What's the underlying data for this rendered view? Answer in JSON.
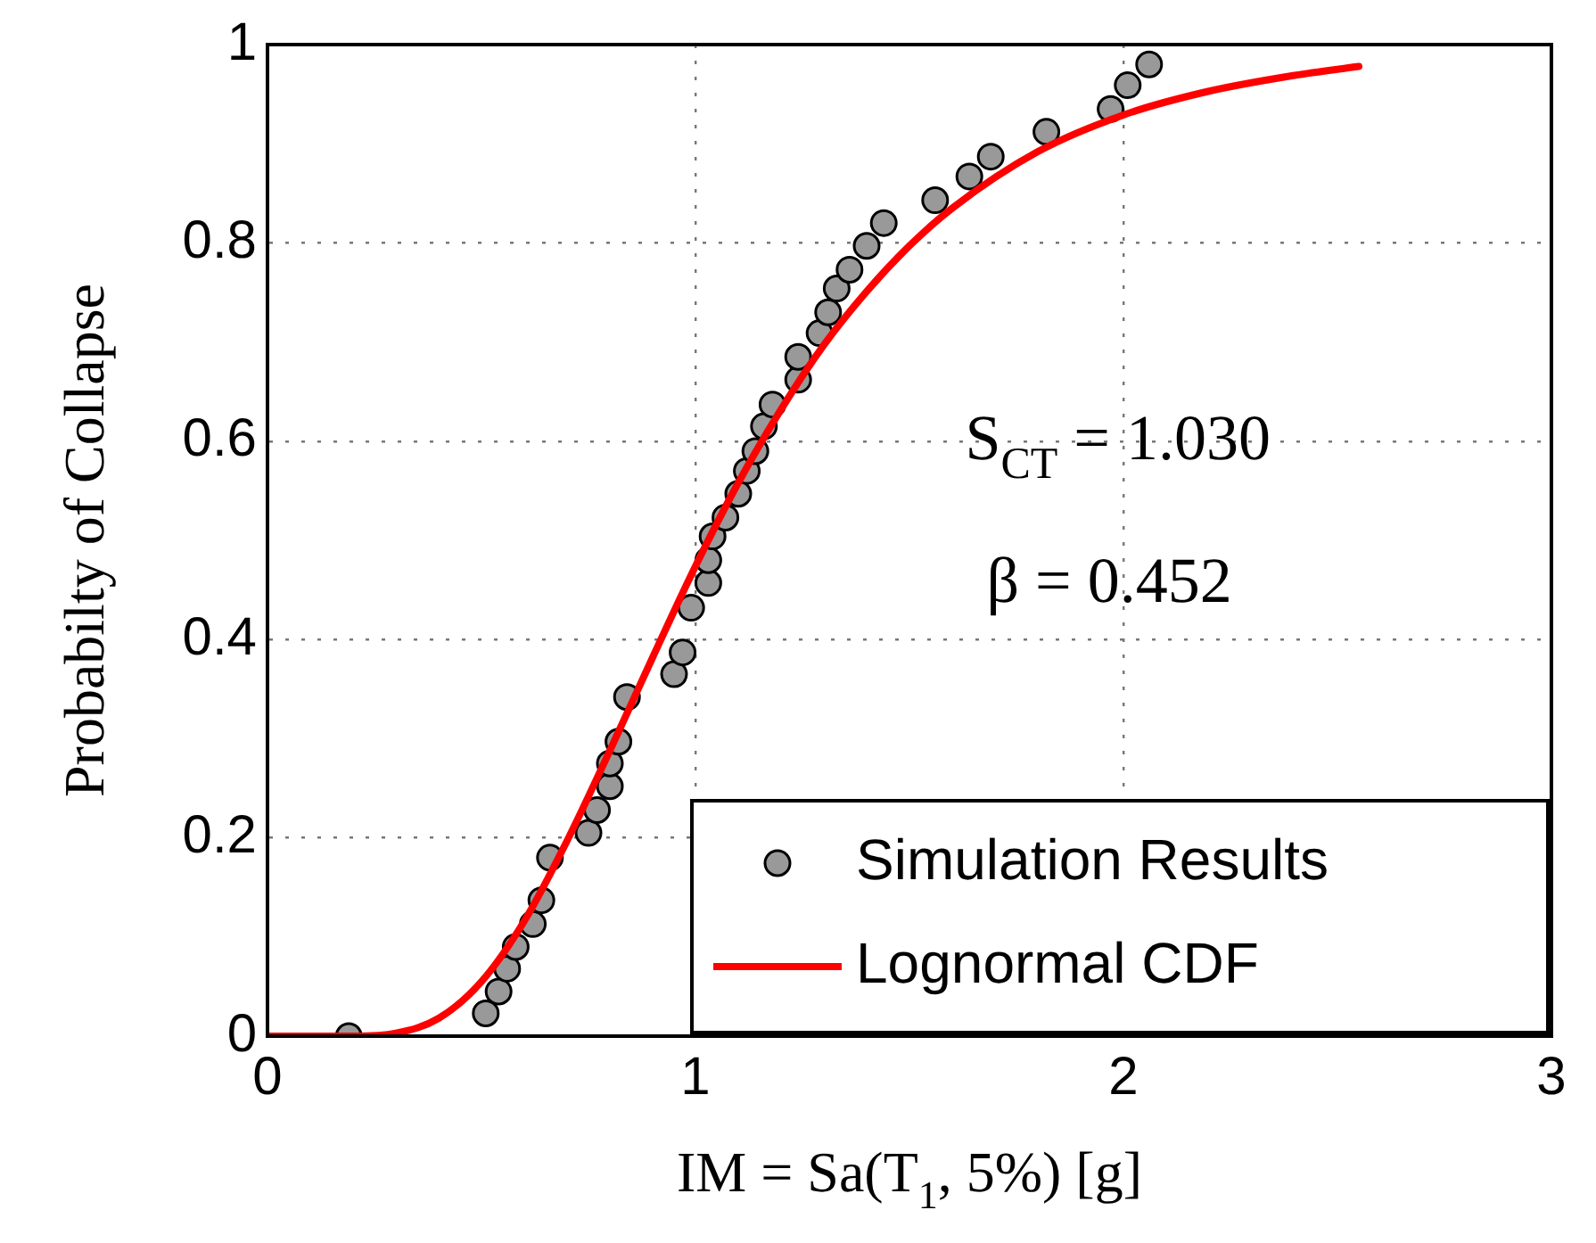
{
  "chart_data": {
    "type": "scatter",
    "xlabel": "IM = Sa(T$_{1}$, 5%) [g]",
    "ylabel": "Probabilty of Collapse",
    "xlim": [
      0,
      3
    ],
    "xticks": [
      0,
      1,
      2,
      3
    ],
    "ylim": [
      0,
      1
    ],
    "yticks": [
      0,
      0.2,
      0.4,
      0.6,
      0.8,
      1
    ],
    "grid": true,
    "legend": "bottom right",
    "annotations": [
      "S$_{CT}$ = 1.030",
      "β = 0.452"
    ],
    "series": [
      {
        "name": "Simulation Results",
        "marker": "circle",
        "color": "#999999",
        "x": [
          0.19,
          0.51,
          0.54,
          0.56,
          0.58,
          0.62,
          0.64,
          0.66,
          0.75,
          0.77,
          0.8,
          0.8,
          0.82,
          0.84,
          0.95,
          0.97,
          0.99,
          1.03,
          1.03,
          1.04,
          1.07,
          1.1,
          1.12,
          1.14,
          1.16,
          1.18,
          1.24,
          1.24,
          1.29,
          1.31,
          1.33,
          1.36,
          1.4,
          1.44,
          1.56,
          1.64,
          1.69,
          1.82,
          1.97,
          2.01,
          2.06
        ],
        "values": [
          0,
          0.023,
          0.045,
          0.068,
          0.09,
          0.113,
          0.137,
          0.18,
          0.205,
          0.228,
          0.252,
          0.275,
          0.297,
          0.342,
          0.365,
          0.387,
          0.432,
          0.457,
          0.48,
          0.504,
          0.523,
          0.547,
          0.57,
          0.59,
          0.615,
          0.637,
          0.662,
          0.685,
          0.709,
          0.73,
          0.754,
          0.773,
          0.797,
          0.82,
          0.843,
          0.867,
          0.887,
          0.912,
          0.935,
          0.959,
          0.98
        ]
      },
      {
        "name": "Lognormal CDF",
        "type": "line",
        "marker": "none",
        "color": "#ff0000",
        "line_style": "solid",
        "x": [
          0,
          0.1,
          0.2,
          0.3,
          0.4,
          0.5,
          0.6,
          0.7,
          0.8,
          0.9,
          1.0,
          1.1,
          1.2,
          1.3,
          1.4,
          1.5,
          1.6,
          1.8,
          2.0,
          2.2,
          2.4,
          2.55
        ],
        "values": [
          0,
          0,
          0,
          0.003,
          0.018,
          0.055,
          0.116,
          0.197,
          0.288,
          0.382,
          0.474,
          0.558,
          0.632,
          0.697,
          0.751,
          0.797,
          0.835,
          0.892,
          0.929,
          0.953,
          0.969,
          0.978
        ]
      }
    ]
  }
}
